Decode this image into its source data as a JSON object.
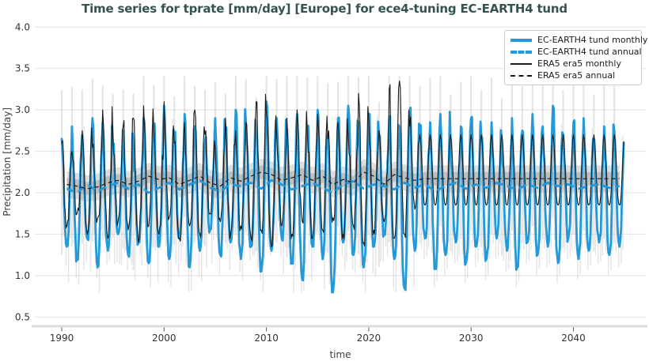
{
  "chart_data": {
    "type": "line",
    "title": "Time series for tprate [mm/day] [Europe] for ece4-tuning EC-EARTH4 tund",
    "xlabel": "time",
    "ylabel": "Precipitation [mm/day]",
    "xlim": [
      1988.8,
      2046.5
    ],
    "ylim": [
      0.5,
      4.0
    ],
    "xticks": [
      1990,
      2000,
      2010,
      2020,
      2030,
      2040
    ],
    "yticks": [
      0.5,
      1.0,
      1.5,
      2.0,
      2.5,
      3.0,
      3.5,
      4.0
    ],
    "grid": "horizontal",
    "legend_position": "upper right",
    "start_year": 1990,
    "series": [
      {
        "name": "EC-EARTH4 tund monthly",
        "color": "#2499d8",
        "style": "solid",
        "width": 2.8,
        "kind": "monthly",
        "winter_peaks": [
          2.65,
          2.8,
          2.7,
          2.9,
          2.85,
          2.6,
          2.75,
          2.55,
          2.9,
          2.8,
          3.05,
          2.7,
          2.95,
          2.8,
          2.6,
          2.9,
          2.75,
          3.0,
          2.85,
          2.7,
          3.1,
          2.9,
          2.75,
          2.95,
          2.8,
          3.0,
          2.7,
          2.9,
          3.05,
          2.85,
          2.95,
          2.7,
          2.9,
          2.8,
          3.0,
          2.75,
          2.85,
          2.95,
          2.65,
          2.8,
          2.9,
          2.7,
          2.85,
          2.6,
          2.9,
          2.75,
          2.95,
          2.8,
          3.05,
          2.7,
          2.85,
          2.9,
          2.65,
          2.8,
          2.75,
          2.4
        ],
        "summer_troughs": [
          1.35,
          1.2,
          1.45,
          1.1,
          1.3,
          1.5,
          1.25,
          1.4,
          1.15,
          1.35,
          1.2,
          1.45,
          1.1,
          1.3,
          1.55,
          1.25,
          1.4,
          1.2,
          1.35,
          1.05,
          1.3,
          1.45,
          1.15,
          0.95,
          1.35,
          1.2,
          0.8,
          1.4,
          1.25,
          1.1,
          1.35,
          1.5,
          1.2,
          0.85,
          1.3,
          1.45,
          1.1,
          1.25,
          1.4,
          1.15,
          1.35,
          1.2,
          1.45,
          1.3,
          1.1,
          1.4,
          1.25,
          1.35,
          1.15,
          1.45,
          1.2,
          1.3,
          1.4,
          1.25,
          1.35,
          1.5
        ]
      },
      {
        "name": "EC-EARTH4 tund annual",
        "color": "#2499d8",
        "style": "dashed",
        "width": 2.8,
        "kind": "annual",
        "values": [
          2.05,
          2.0,
          2.1,
          2.02,
          2.08,
          2.12,
          2.05,
          2.1,
          2.0,
          2.06,
          2.12,
          2.04,
          2.1,
          2.15,
          2.06,
          2.02,
          2.1,
          2.08,
          2.12,
          2.05,
          2.15,
          2.1,
          2.04,
          2.08,
          2.12,
          2.06,
          2.0,
          2.1,
          2.14,
          2.05,
          2.1,
          2.08,
          2.04,
          2.12,
          2.06,
          2.1,
          2.02,
          2.08,
          2.12,
          2.05,
          2.1,
          2.06,
          2.12,
          2.08,
          2.04,
          2.1,
          2.06,
          2.12,
          2.08,
          2.1,
          2.05,
          2.08,
          2.1,
          2.06,
          2.08,
          2.1
        ]
      },
      {
        "name": "ERA5 era5 monthly",
        "color": "#1a1a1a",
        "style": "solid",
        "width": 1.1,
        "kind": "monthly",
        "climatology_from": 2025,
        "winter_peaks": [
          2.6,
          2.5,
          2.75,
          2.55,
          3.0,
          2.65,
          2.8,
          2.9,
          3.05,
          2.75,
          3.1,
          2.6,
          2.85,
          3.0,
          2.7,
          2.55,
          2.9,
          2.75,
          2.85,
          3.1,
          2.95,
          2.7,
          2.9,
          3.0,
          2.75,
          2.95,
          2.65,
          2.85,
          2.7,
          3.2,
          2.9,
          2.75,
          3.25,
          3.35,
          2.8,
          2.7,
          2.7,
          2.7,
          2.7,
          2.7,
          2.7,
          2.7,
          2.7,
          2.7,
          2.7,
          2.7,
          2.7,
          2.7,
          2.7,
          2.7,
          2.7,
          2.7,
          2.7,
          2.7,
          2.7,
          2.7
        ],
        "summer_troughs": [
          1.6,
          1.75,
          1.5,
          1.7,
          1.45,
          1.65,
          1.55,
          1.4,
          1.6,
          1.5,
          1.7,
          1.45,
          1.6,
          1.5,
          1.75,
          1.65,
          1.5,
          1.6,
          1.45,
          1.55,
          1.35,
          1.6,
          1.5,
          1.65,
          1.45,
          1.55,
          1.7,
          1.5,
          1.6,
          1.4,
          1.55,
          1.65,
          1.45,
          1.5,
          1.8,
          1.85,
          1.85,
          1.85,
          1.85,
          1.85,
          1.85,
          1.85,
          1.85,
          1.85,
          1.85,
          1.85,
          1.85,
          1.85,
          1.85,
          1.85,
          1.85,
          1.85,
          1.85,
          1.85,
          1.85,
          1.85
        ]
      },
      {
        "name": "ERA5 era5 annual",
        "color": "#1a1a1a",
        "style": "dashed",
        "width": 1.2,
        "kind": "annual",
        "values": [
          2.1,
          2.08,
          2.05,
          2.07,
          2.12,
          2.15,
          2.1,
          2.14,
          2.2,
          2.16,
          2.18,
          2.1,
          2.15,
          2.2,
          2.12,
          2.08,
          2.18,
          2.14,
          2.2,
          2.25,
          2.22,
          2.15,
          2.18,
          2.22,
          2.15,
          2.2,
          2.1,
          2.16,
          2.12,
          2.25,
          2.2,
          2.1,
          2.22,
          2.18,
          2.15,
          2.17,
          2.17,
          2.17,
          2.17,
          2.17,
          2.17,
          2.17,
          2.17,
          2.17,
          2.17,
          2.17,
          2.17,
          2.17,
          2.17,
          2.17,
          2.17,
          2.17,
          2.17,
          2.17,
          2.17,
          2.17
        ]
      }
    ],
    "uncertainty": {
      "monthly_envelope_color": "#cdcdcd",
      "annual_band_color": "#a0a0a0",
      "annual_band_half_widths": [
        0.08,
        0.16
      ],
      "monthly_spike_top_max": 3.4,
      "monthly_spike_bottom_min": 0.8
    },
    "render": {
      "seed": 13,
      "jitter_blue": 0.3,
      "jitter_black": 0.38,
      "end_time": 2044.93
    }
  }
}
